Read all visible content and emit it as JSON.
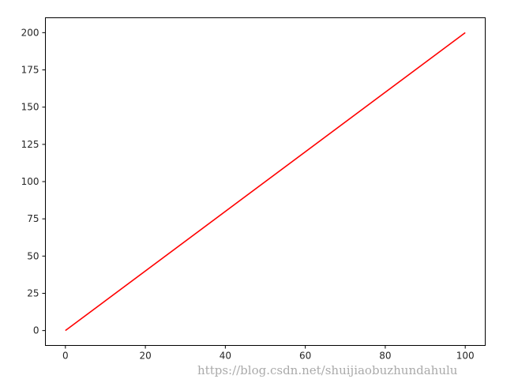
{
  "chart_data": {
    "type": "line",
    "title": "",
    "xlabel": "",
    "ylabel": "",
    "xlim": [
      -5,
      105
    ],
    "ylim": [
      -10,
      210
    ],
    "x_ticks": [
      0,
      20,
      40,
      60,
      80,
      100
    ],
    "y_ticks": [
      0,
      25,
      50,
      75,
      100,
      125,
      150,
      175,
      200
    ],
    "grid": false,
    "series": [
      {
        "x": [
          0,
          100
        ],
        "y": [
          0,
          200
        ],
        "color": "#ff0000"
      }
    ]
  },
  "watermark": "https://blog.csdn.net/shuijiaobuzhundahulu"
}
